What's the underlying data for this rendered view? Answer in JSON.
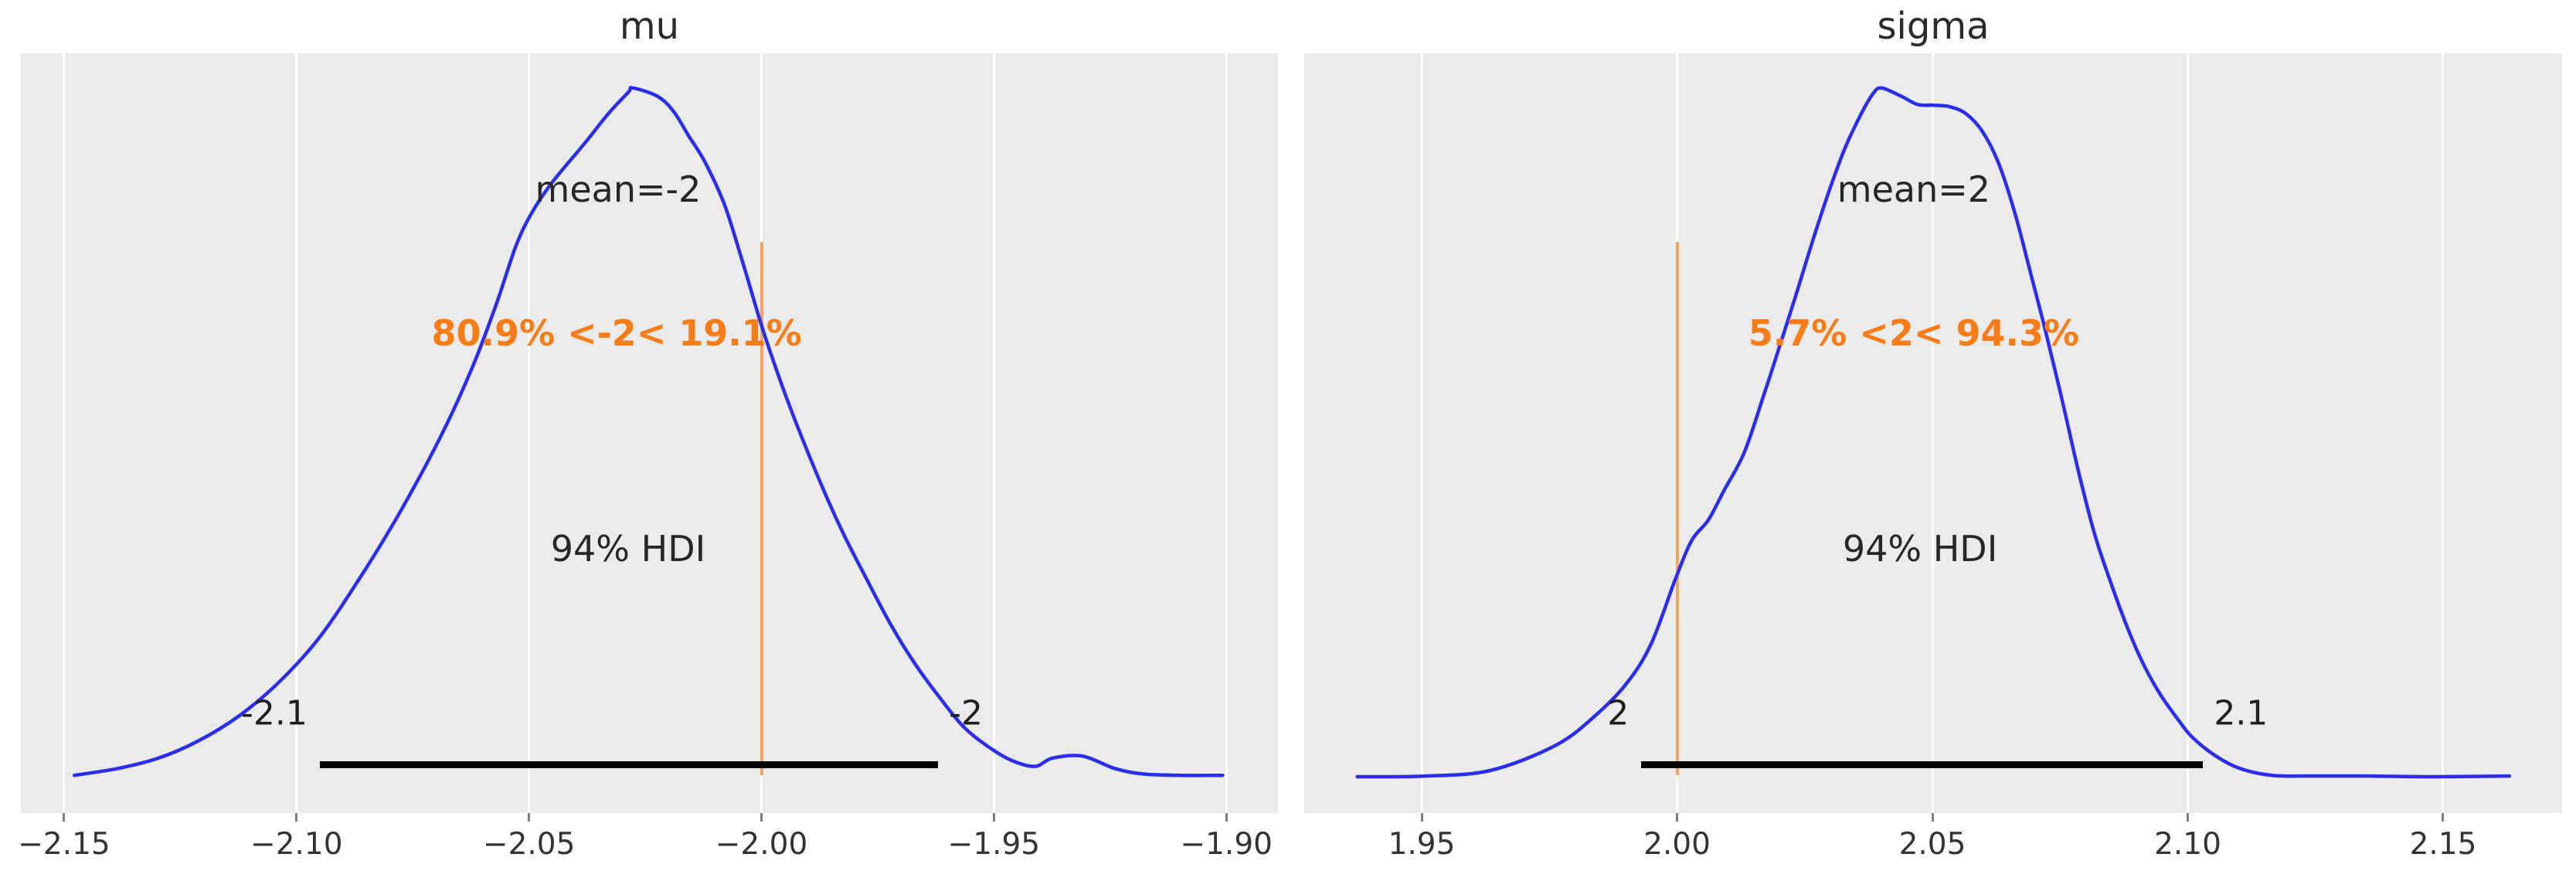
{
  "figure": {
    "kind": "arviz-posterior-plot",
    "background_color": "#ffffff",
    "panel_background_color": "#ebebeb",
    "grid_color": "#ffffff",
    "curve_color": "#2a2eec",
    "ref_line_color": "#f4a45f",
    "ref_text_color": "#fa7c17",
    "hdi_bar_color": "#000000",
    "text_color": "#262626"
  },
  "chart_data": [
    {
      "type": "area",
      "subtype": "kde-posterior",
      "title": "mu",
      "mean": -2,
      "mean_label": "mean=-2",
      "ref_value": -2,
      "ref_text": "80.9% <-2< 19.1%",
      "hdi_text": "94% HDI",
      "hdi_interval": [
        -2.095,
        -1.962
      ],
      "hdi_lower_label": "-2.1",
      "hdi_upper_label": "-2",
      "xlim": [
        -2.1593,
        -1.8889
      ],
      "grid": true,
      "x_ticks": [
        {
          "value": -2.15,
          "label": "−2.15"
        },
        {
          "value": -2.1,
          "label": "−2.10"
        },
        {
          "value": -2.05,
          "label": "−2.05"
        },
        {
          "value": -2.0,
          "label": "−2.00"
        },
        {
          "value": -1.95,
          "label": "−1.95"
        },
        {
          "value": -1.9,
          "label": "−1.90"
        }
      ],
      "kde": {
        "x": [
          -2.1478,
          -2.1384,
          -2.1297,
          -2.1211,
          -2.1124,
          -2.1038,
          -2.0952,
          -2.0865,
          -2.0779,
          -2.0691,
          -2.0623,
          -2.0571,
          -2.0528,
          -2.0493,
          -2.045,
          -2.038,
          -2.0329,
          -2.0286,
          -2.0277,
          -2.0224,
          -2.0189,
          -2.0156,
          -2.0121,
          -2.0078,
          -2.0035,
          -2.0,
          -1.9965,
          -1.993,
          -1.9879,
          -1.9827,
          -1.9774,
          -1.9723,
          -1.9671,
          -1.9618,
          -1.9566,
          -1.9515,
          -1.9463,
          -1.9412,
          -1.9374,
          -1.931,
          -1.924,
          -1.918,
          -1.91,
          -1.9008
        ],
        "density": [
          0.002,
          0.012,
          0.027,
          0.052,
          0.088,
          0.137,
          0.201,
          0.287,
          0.382,
          0.492,
          0.592,
          0.684,
          0.77,
          0.819,
          0.862,
          0.919,
          0.962,
          0.993,
          0.999,
          0.987,
          0.965,
          0.929,
          0.891,
          0.827,
          0.734,
          0.655,
          0.585,
          0.521,
          0.436,
          0.357,
          0.287,
          0.222,
          0.165,
          0.116,
          0.073,
          0.045,
          0.024,
          0.015,
          0.027,
          0.03,
          0.012,
          0.004,
          0.002,
          0.002
        ]
      }
    },
    {
      "type": "area",
      "subtype": "kde-posterior",
      "title": "sigma",
      "mean": 2,
      "mean_label": "mean=2",
      "ref_value": 2,
      "ref_text": "5.7% <2< 94.3%",
      "hdi_text": "94% HDI",
      "hdi_interval": [
        1.993,
        2.103
      ],
      "hdi_lower_label": "2",
      "hdi_upper_label": "2.1",
      "xlim": [
        1.927,
        2.1733
      ],
      "grid": true,
      "x_ticks": [
        {
          "value": 1.95,
          "label": "1.95"
        },
        {
          "value": 2.0,
          "label": "2.00"
        },
        {
          "value": 2.05,
          "label": "2.05"
        },
        {
          "value": 2.1,
          "label": "2.10"
        },
        {
          "value": 2.15,
          "label": "2.15"
        }
      ],
      "kde": {
        "x": [
          1.9374,
          1.9508,
          1.9634,
          1.9761,
          1.9839,
          1.9903,
          1.995,
          1.9997,
          2.0029,
          2.0061,
          2.0092,
          2.0132,
          2.0171,
          2.0202,
          2.0233,
          2.0265,
          2.0297,
          2.0329,
          2.0361,
          2.0383,
          2.04,
          2.0439,
          2.0471,
          2.0502,
          2.0533,
          2.0565,
          2.0597,
          2.0629,
          2.0661,
          2.0691,
          2.0723,
          2.0755,
          2.0786,
          2.0818,
          2.085,
          2.0882,
          2.0912,
          2.0944,
          2.0976,
          2.1008,
          2.1055,
          2.1102,
          2.1165,
          2.1244,
          2.1355,
          2.148,
          2.163
        ],
        "density": [
          0.0,
          0.001,
          0.009,
          0.045,
          0.088,
          0.137,
          0.194,
          0.287,
          0.343,
          0.372,
          0.415,
          0.471,
          0.556,
          0.627,
          0.699,
          0.776,
          0.848,
          0.912,
          0.962,
          0.99,
          0.999,
          0.987,
          0.975,
          0.974,
          0.972,
          0.962,
          0.937,
          0.891,
          0.819,
          0.734,
          0.642,
          0.543,
          0.443,
          0.351,
          0.28,
          0.216,
          0.165,
          0.122,
          0.088,
          0.058,
          0.03,
          0.012,
          0.002,
          0.001,
          0.001,
          0.0,
          0.001
        ]
      }
    }
  ]
}
